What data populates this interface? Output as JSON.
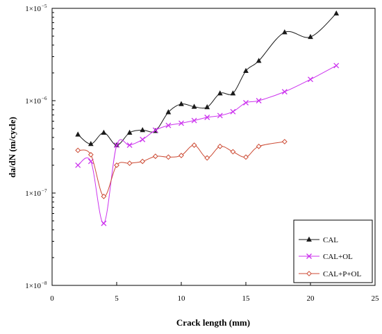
{
  "chart_data": {
    "type": "line",
    "title": "",
    "xlabel": "Crack length (mm)",
    "ylabel": "da/dN (m/cycle)",
    "xlim": [
      0,
      25
    ],
    "ylim": [
      1e-08,
      1e-05
    ],
    "yscale": "log",
    "x_ticks": [
      "0",
      "5",
      "10",
      "15",
      "20",
      "25"
    ],
    "y_ticks": [
      {
        "base": "1×10",
        "exp": "−5",
        "value": 1e-05
      },
      {
        "base": "1×10",
        "exp": "−6",
        "value": 1e-06
      },
      {
        "base": "1×10",
        "exp": "−7",
        "value": 1e-07
      },
      {
        "base": "1×10",
        "exp": "−8",
        "value": 1e-08
      }
    ],
    "grid": false,
    "legend_position": "bottom-right",
    "series": [
      {
        "name": "CAL",
        "color": "#1a1a1a",
        "marker": "triangle",
        "x": [
          2,
          3,
          4,
          5,
          6,
          7,
          8,
          9,
          10,
          11,
          12,
          13,
          14,
          15,
          16,
          18,
          20,
          22
        ],
        "y": [
          4.3e-07,
          3.4e-07,
          4.5e-07,
          3.3e-07,
          4.5e-07,
          4.8e-07,
          4.7e-07,
          7.5e-07,
          9.2e-07,
          8.6e-07,
          8.5e-07,
          1.2e-06,
          1.2e-06,
          2.1e-06,
          2.7e-06,
          5.5e-06,
          4.9e-06,
          8.8e-06
        ]
      },
      {
        "name": "CAL+OL",
        "color": "#cc33ee",
        "marker": "x",
        "x": [
          2,
          3,
          4,
          5,
          6,
          7,
          8,
          9,
          10,
          11,
          12,
          13,
          14,
          15,
          16,
          18,
          20,
          22
        ],
        "y": [
          2e-07,
          2.2e-07,
          4.7e-08,
          3.3e-07,
          3.3e-07,
          3.8e-07,
          4.8e-07,
          5.4e-07,
          5.7e-07,
          6.1e-07,
          6.6e-07,
          6.9e-07,
          7.6e-07,
          9.5e-07,
          1e-06,
          1.25e-06,
          1.7e-06,
          2.4e-06
        ]
      },
      {
        "name": "CAL+P+OL",
        "color": "#cc4a33",
        "marker": "diamond",
        "x": [
          2,
          3,
          4,
          5,
          6,
          7,
          8,
          9,
          10,
          11,
          12,
          13,
          14,
          15,
          16,
          18
        ],
        "y": [
          2.9e-07,
          2.6e-07,
          9.2e-08,
          2e-07,
          2.1e-07,
          2.2e-07,
          2.5e-07,
          2.45e-07,
          2.55e-07,
          3.3e-07,
          2.4e-07,
          3.2e-07,
          2.8e-07,
          2.45e-07,
          3.2e-07,
          3.6e-07
        ]
      }
    ]
  }
}
